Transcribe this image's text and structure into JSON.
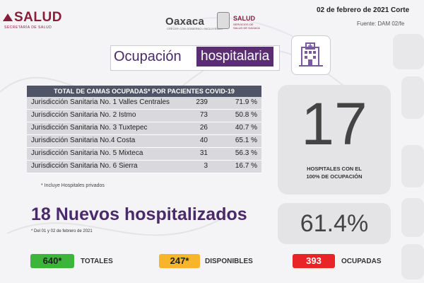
{
  "header": {
    "left_logo": "SALUD",
    "left_logo_sub": "SECRETARÍA DE SALUD",
    "oaxaca_logo": "Oaxaca",
    "oaxaca_sub": "CRECER CON GOBIERNO • INCLUYENDO",
    "right_logo": "SALUD",
    "right_logo_sub": "SERVICIOS DE SALUD DE OAXACA",
    "date": "02 de febrero de 2021 Corte",
    "source": "Fuente: DAM 02/fe"
  },
  "title": {
    "part1": "Ocupación",
    "part2": "hospitalaria"
  },
  "table": {
    "header": "TOTAL DE CAMAS OCUPADAS* POR PACIENTES COVID-19",
    "rows": [
      {
        "name": "Jurisdicción Sanitaria No. 1 Valles Centrales",
        "count": "239",
        "pct": "71.9 %"
      },
      {
        "name": "Jurisdicción Sanitaria No. 2 Istmo",
        "count": "73",
        "pct": "50.8 %"
      },
      {
        "name": "Jurisdicción Sanitaria No. 3 Tuxtepec",
        "count": "26",
        "pct": "40.7 %"
      },
      {
        "name": "Jurisdicción Sanitaria No.4 Costa",
        "count": "40",
        "pct": "65.1 %"
      },
      {
        "name": "Jurisdicción Sanitaria No. 5 Mixteca",
        "count": "31",
        "pct": "56.3 %"
      },
      {
        "name": "Jurisdicción Sanitaria No. 6 Sierra",
        "count": "3",
        "pct": "16.7 %"
      }
    ],
    "footnote": "* Incluye Hospitales privados"
  },
  "stats": {
    "hospitals_full": "17",
    "hospitals_full_caption_1": "HOSPITALES CON EL",
    "hospitals_full_caption_2": "100% DE OCUPACIÓN",
    "occupancy": "61.4%"
  },
  "new_hospitalized": {
    "text": "18 Nuevos hospitalizados",
    "note": "* Del 01 y 02 de febrero de 2021"
  },
  "totals": [
    {
      "value": "640*",
      "label": "TOTALES",
      "color": "#3db53a"
    },
    {
      "value": "247*",
      "label": "DISPONIBLES",
      "color": "#f6b52a"
    },
    {
      "value": "393",
      "label": "OCUPADAS",
      "color": "#e82426"
    }
  ]
}
